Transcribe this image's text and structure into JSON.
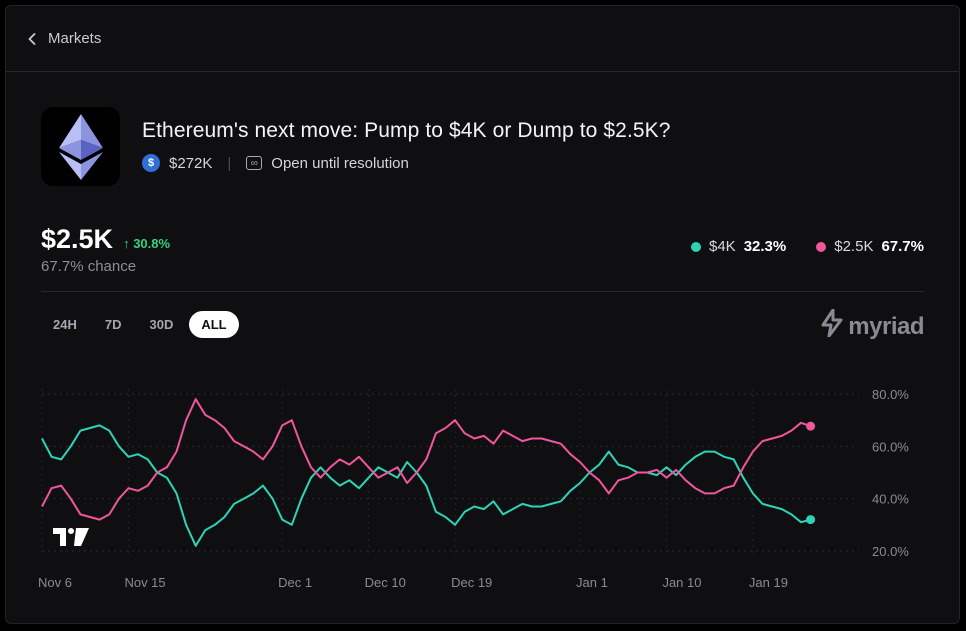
{
  "nav": {
    "back_label": "Markets"
  },
  "market": {
    "title": "Ethereum's next move: Pump to $4K or Dump to $2.5K?",
    "volume": "$272K",
    "status": "Open until resolution"
  },
  "summary": {
    "price": "$2.5K",
    "change": "30.8%",
    "chance_text": "67.7% chance"
  },
  "legend": [
    {
      "label": "$4K",
      "value": "32.3%",
      "color": "#2ed3b7"
    },
    {
      "label": "$2.5K",
      "value": "67.7%",
      "color": "#f0569b"
    }
  ],
  "ranges": [
    {
      "label": "24H",
      "active": false
    },
    {
      "label": "7D",
      "active": false
    },
    {
      "label": "30D",
      "active": false
    },
    {
      "label": "ALL",
      "active": true
    }
  ],
  "brand": {
    "name": "myriad"
  },
  "chart_data": {
    "type": "line",
    "title": "",
    "xlabel": "",
    "ylabel": "",
    "ylim": [
      20,
      80
    ],
    "y_ticks": [
      "80.0%",
      "60.0%",
      "40.0%",
      "20.0%"
    ],
    "y_tick_values": [
      80,
      60,
      40,
      20
    ],
    "x_tick_labels": [
      "Nov 6",
      "Nov 15",
      "Dec 1",
      "Dec 10",
      "Dec 19",
      "Jan 1",
      "Jan 10",
      "Jan 19"
    ],
    "x_tick_days": [
      0,
      9,
      25,
      34,
      43,
      56,
      65,
      74
    ],
    "x_range_days": [
      0,
      84
    ],
    "series": [
      {
        "name": "$4K",
        "color": "#2ed3b7",
        "points": [
          [
            0,
            63
          ],
          [
            1,
            56
          ],
          [
            2,
            55
          ],
          [
            3,
            60
          ],
          [
            4,
            66
          ],
          [
            5,
            67
          ],
          [
            6,
            68
          ],
          [
            7,
            66
          ],
          [
            8,
            60
          ],
          [
            9,
            56
          ],
          [
            10,
            57
          ],
          [
            11,
            55
          ],
          [
            12,
            50
          ],
          [
            13,
            48
          ],
          [
            14,
            42
          ],
          [
            15,
            30
          ],
          [
            16,
            22
          ],
          [
            17,
            28
          ],
          [
            18,
            30
          ],
          [
            19,
            33
          ],
          [
            20,
            38
          ],
          [
            21,
            40
          ],
          [
            22,
            42
          ],
          [
            23,
            45
          ],
          [
            24,
            40
          ],
          [
            25,
            32
          ],
          [
            26,
            30
          ],
          [
            27,
            40
          ],
          [
            28,
            48
          ],
          [
            29,
            52
          ],
          [
            30,
            48
          ],
          [
            31,
            45
          ],
          [
            32,
            47
          ],
          [
            33,
            44
          ],
          [
            34,
            48
          ],
          [
            35,
            52
          ],
          [
            36,
            50
          ],
          [
            37,
            48
          ],
          [
            38,
            54
          ],
          [
            39,
            50
          ],
          [
            40,
            45
          ],
          [
            41,
            35
          ],
          [
            42,
            33
          ],
          [
            43,
            30
          ],
          [
            44,
            35
          ],
          [
            45,
            37
          ],
          [
            46,
            36
          ],
          [
            47,
            39
          ],
          [
            48,
            34
          ],
          [
            49,
            36
          ],
          [
            50,
            38
          ],
          [
            51,
            37
          ],
          [
            52,
            37
          ],
          [
            53,
            38
          ],
          [
            54,
            39
          ],
          [
            55,
            43
          ],
          [
            56,
            46
          ],
          [
            57,
            50
          ],
          [
            58,
            53
          ],
          [
            59,
            58
          ],
          [
            60,
            53
          ],
          [
            61,
            52
          ],
          [
            62,
            50
          ],
          [
            63,
            50
          ],
          [
            64,
            49
          ],
          [
            65,
            52
          ],
          [
            66,
            49
          ],
          [
            67,
            53
          ],
          [
            68,
            56
          ],
          [
            69,
            58
          ],
          [
            70,
            58
          ],
          [
            71,
            56
          ],
          [
            72,
            55
          ],
          [
            73,
            48
          ],
          [
            74,
            42
          ],
          [
            75,
            38
          ],
          [
            76,
            37
          ],
          [
            77,
            36
          ],
          [
            78,
            34
          ],
          [
            79,
            31
          ],
          [
            80,
            32
          ]
        ]
      },
      {
        "name": "$2.5K",
        "color": "#f0569b",
        "points": [
          [
            0,
            37
          ],
          [
            1,
            44
          ],
          [
            2,
            45
          ],
          [
            3,
            40
          ],
          [
            4,
            34
          ],
          [
            5,
            33
          ],
          [
            6,
            32
          ],
          [
            7,
            34
          ],
          [
            8,
            40
          ],
          [
            9,
            44
          ],
          [
            10,
            43
          ],
          [
            11,
            45
          ],
          [
            12,
            50
          ],
          [
            13,
            52
          ],
          [
            14,
            58
          ],
          [
            15,
            70
          ],
          [
            16,
            78
          ],
          [
            17,
            72
          ],
          [
            18,
            70
          ],
          [
            19,
            67
          ],
          [
            20,
            62
          ],
          [
            21,
            60
          ],
          [
            22,
            58
          ],
          [
            23,
            55
          ],
          [
            24,
            60
          ],
          [
            25,
            68
          ],
          [
            26,
            70
          ],
          [
            27,
            60
          ],
          [
            28,
            52
          ],
          [
            29,
            48
          ],
          [
            30,
            52
          ],
          [
            31,
            55
          ],
          [
            32,
            53
          ],
          [
            33,
            56
          ],
          [
            34,
            52
          ],
          [
            35,
            48
          ],
          [
            36,
            50
          ],
          [
            37,
            52
          ],
          [
            38,
            46
          ],
          [
            39,
            50
          ],
          [
            40,
            55
          ],
          [
            41,
            65
          ],
          [
            42,
            67
          ],
          [
            43,
            70
          ],
          [
            44,
            65
          ],
          [
            45,
            63
          ],
          [
            46,
            64
          ],
          [
            47,
            61
          ],
          [
            48,
            66
          ],
          [
            49,
            64
          ],
          [
            50,
            62
          ],
          [
            51,
            63
          ],
          [
            52,
            63
          ],
          [
            53,
            62
          ],
          [
            54,
            61
          ],
          [
            55,
            57
          ],
          [
            56,
            54
          ],
          [
            57,
            50
          ],
          [
            58,
            47
          ],
          [
            59,
            42
          ],
          [
            60,
            47
          ],
          [
            61,
            48
          ],
          [
            62,
            50
          ],
          [
            63,
            50
          ],
          [
            64,
            51
          ],
          [
            65,
            48
          ],
          [
            66,
            51
          ],
          [
            67,
            47
          ],
          [
            68,
            44
          ],
          [
            69,
            42
          ],
          [
            70,
            42
          ],
          [
            71,
            44
          ],
          [
            72,
            45
          ],
          [
            73,
            52
          ],
          [
            74,
            58
          ],
          [
            75,
            62
          ],
          [
            76,
            63
          ],
          [
            77,
            64
          ],
          [
            78,
            66
          ],
          [
            79,
            69
          ],
          [
            80,
            67.7
          ]
        ]
      }
    ]
  }
}
